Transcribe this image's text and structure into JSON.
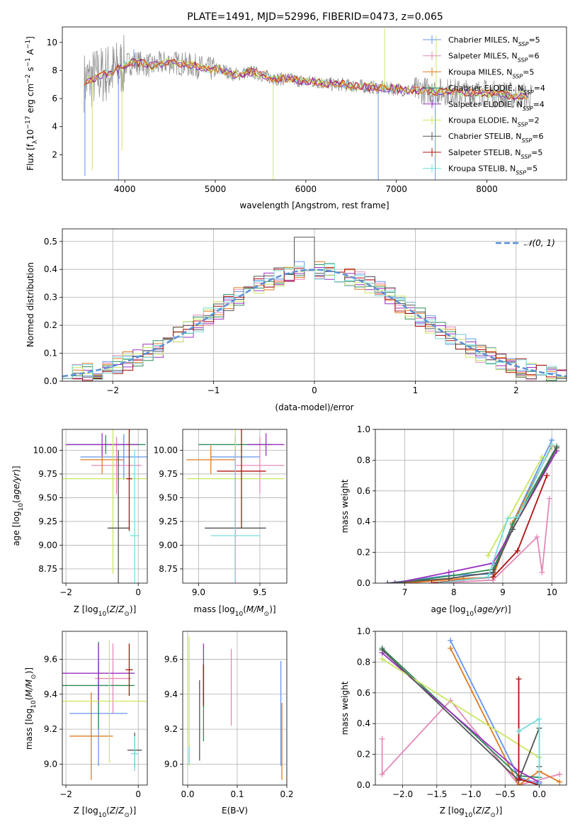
{
  "colors": {
    "Chabrier MILES": "#6495ed",
    "Salpeter MILES": "#e488b8",
    "Kroupa MILES": "#e07a20",
    "Chabrier ELODIE": "#2e8b57",
    "Salpeter ELODIE": "#9a30c0",
    "Kroupa ELODIE": "#c8e860",
    "Chabrier STELIB": "#555555",
    "Salpeter STELIB": "#b01010",
    "Kroupa STELIB": "#78dcdc",
    "spectrum": "#888888",
    "normal": "#5b8fd6"
  },
  "chart_data": [
    {
      "id": "spectrum",
      "type": "line",
      "title": "PLATE=1491, MJD=52996, FIBERID=0473, z=0.065",
      "xlabel": "wavelength [Angstrom, rest frame]",
      "ylabel": "Flux [f",
      "xticks": [
        "4000",
        "5000",
        "6000",
        "7000",
        "8000"
      ],
      "yticks": [
        "2",
        "4",
        "6",
        "8",
        "10"
      ],
      "xlim": [
        3310,
        8880
      ],
      "ylim": [
        0.2,
        11.1
      ],
      "legend_position": "top-right",
      "legend": [
        {
          "model": "Chabrier MILES",
          "n": "5"
        },
        {
          "model": "Salpeter MILES",
          "n": "6"
        },
        {
          "model": "Kroupa MILES",
          "n": "5"
        },
        {
          "model": "Chabrier ELODIE",
          "n": "4"
        },
        {
          "model": "Salpeter ELODIE",
          "n": "4"
        },
        {
          "model": "Kroupa ELODIE",
          "n": "2"
        },
        {
          "model": "Chabrier STELIB",
          "n": "6"
        },
        {
          "model": "Salpeter STELIB",
          "n": "5"
        },
        {
          "model": "Kroupa STELIB",
          "n": "5"
        }
      ],
      "continuum": [
        [
          3550,
          7.2
        ],
        [
          3600,
          7.3
        ],
        [
          3700,
          7.6
        ],
        [
          3800,
          7.8
        ],
        [
          3900,
          8.0
        ],
        [
          4000,
          8.4
        ],
        [
          4100,
          8.6
        ],
        [
          4200,
          8.5
        ],
        [
          4300,
          8.3
        ],
        [
          4400,
          8.5
        ],
        [
          4500,
          8.6
        ],
        [
          4600,
          8.5
        ],
        [
          4700,
          8.4
        ],
        [
          4800,
          8.3
        ],
        [
          4900,
          8.1
        ],
        [
          5000,
          8.1
        ],
        [
          5100,
          8.0
        ],
        [
          5200,
          7.7
        ],
        [
          5300,
          7.8
        ],
        [
          5400,
          7.9
        ],
        [
          5500,
          7.7
        ],
        [
          5600,
          7.5
        ],
        [
          5700,
          7.4
        ],
        [
          5800,
          7.4
        ],
        [
          5900,
          7.3
        ],
        [
          6000,
          7.2
        ],
        [
          6100,
          7.2
        ],
        [
          6200,
          7.1
        ],
        [
          6300,
          7.0
        ],
        [
          6400,
          7.0
        ],
        [
          6500,
          6.9
        ],
        [
          6600,
          6.9
        ],
        [
          6700,
          6.8
        ],
        [
          6800,
          6.8
        ],
        [
          6900,
          6.7
        ],
        [
          7000,
          6.7
        ],
        [
          7100,
          6.6
        ],
        [
          7200,
          6.6
        ],
        [
          7300,
          6.6
        ],
        [
          7400,
          6.5
        ],
        [
          7500,
          6.5
        ],
        [
          7600,
          6.5
        ],
        [
          7700,
          6.4
        ],
        [
          7800,
          6.4
        ],
        [
          7900,
          6.4
        ],
        [
          8000,
          6.4
        ],
        [
          8100,
          6.3
        ],
        [
          8200,
          6.3
        ],
        [
          8300,
          6.2
        ],
        [
          8400,
          6.2
        ],
        [
          8500,
          6.1
        ]
      ]
    },
    {
      "id": "residuals",
      "type": "histogram",
      "xlabel": "(data-model)/error",
      "ylabel": "Normed distribution",
      "xticks": [
        "−2",
        "−1",
        "0",
        "1",
        "2"
      ],
      "yticks": [
        "0.0",
        "0.1",
        "0.2",
        "0.3",
        "0.4",
        "0.5"
      ],
      "xlim": [
        -2.5,
        2.5
      ],
      "ylim": [
        0,
        0.545
      ],
      "legend": [
        "𝒩(0, 1)"
      ],
      "legend_position": "top-right",
      "grid": true,
      "bin_width": 0.1
    },
    {
      "id": "age-vs-z",
      "type": "scatter",
      "xlabel": "Z [log",
      "ylabel": "age  [log",
      "xticks": [
        "−2",
        "0"
      ],
      "yticks": [
        "8.75",
        "9.00",
        "9.25",
        "9.50",
        "9.75",
        "10.00"
      ],
      "xlim": [
        -2.1,
        0.25
      ],
      "ylim": [
        8.6,
        10.22
      ],
      "points": [
        {
          "model": "Chabrier MILES",
          "x": -0.4,
          "xerr": 1.2,
          "y": 9.93,
          "yerr": 0.24
        },
        {
          "model": "Salpeter MILES",
          "x": -0.6,
          "xerr": 0.7,
          "y": 9.84,
          "yerr": 0.3
        },
        {
          "model": "Kroupa MILES",
          "x": -1.0,
          "xerr": 0.6,
          "y": 9.9,
          "yerr": 0.15
        },
        {
          "model": "Chabrier ELODIE",
          "x": -0.9,
          "xerr": 1.1,
          "y": 10.06,
          "yerr": 0.1
        },
        {
          "model": "Salpeter ELODIE",
          "x": -1.0,
          "xerr": 1.0,
          "y": 10.06,
          "yerr": 0.12
        },
        {
          "model": "Kroupa ELODIE",
          "x": -0.7,
          "xerr": 1.6,
          "y": 9.7,
          "yerr": 1.0
        },
        {
          "model": "Chabrier STELIB",
          "x": -0.55,
          "xerr": 0.3,
          "y": 9.18,
          "yerr": 0.82
        },
        {
          "model": "Salpeter STELIB",
          "x": -0.25,
          "xerr": 0.08,
          "y": 9.7,
          "yerr": 0.55
        },
        {
          "model": "Kroupa STELIB",
          "x": -0.1,
          "xerr": 0.12,
          "y": 9.1,
          "yerr": 0.9
        }
      ]
    },
    {
      "id": "age-vs-mass",
      "type": "scatter",
      "xlabel": "mass [log",
      "ylabel": "",
      "xticks": [
        "9.0",
        "9.5"
      ],
      "yticks": [
        "8.75",
        "9.00",
        "9.25",
        "9.50",
        "9.75",
        "10.00"
      ],
      "xlim": [
        8.87,
        9.72
      ],
      "ylim": [
        8.6,
        10.22
      ],
      "points": [
        {
          "model": "Chabrier MILES",
          "x": 9.3,
          "xerr": 0.2,
          "y": 9.93,
          "yerr": 0.24
        },
        {
          "model": "Salpeter MILES",
          "x": 9.5,
          "xerr": 0.2,
          "y": 9.84,
          "yerr": 0.3
        },
        {
          "model": "Kroupa MILES",
          "x": 9.1,
          "xerr": 0.2,
          "y": 9.9,
          "yerr": 0.15
        },
        {
          "model": "Chabrier ELODIE",
          "x": 9.3,
          "xerr": 0.3,
          "y": 10.06,
          "yerr": 0.1
        },
        {
          "model": "Salpeter ELODIE",
          "x": 9.55,
          "xerr": 0.15,
          "y": 10.06,
          "yerr": 0.12
        },
        {
          "model": "Kroupa ELODIE",
          "x": 9.3,
          "xerr": 0.4,
          "y": 9.7,
          "yerr": 1.0
        },
        {
          "model": "Chabrier STELIB",
          "x": 9.3,
          "xerr": 0.25,
          "y": 9.18,
          "yerr": 0.82
        },
        {
          "model": "Salpeter STELIB",
          "x": 9.35,
          "xerr": 0.2,
          "y": 9.78,
          "yerr": 0.6
        },
        {
          "model": "Kroupa STELIB",
          "x": 9.3,
          "xerr": 0.2,
          "y": 9.1,
          "yerr": 0.9
        }
      ]
    },
    {
      "id": "mass-weight-vs-age",
      "type": "line",
      "xlabel": "age  [log",
      "ylabel": "mass weight",
      "xticks": [
        "7",
        "8",
        "9",
        "10"
      ],
      "yticks": [
        "0.0",
        "0.2",
        "0.4",
        "0.6",
        "0.8",
        "1.0"
      ],
      "xlim": [
        6.4,
        10.3
      ],
      "ylim": [
        0,
        1.0
      ],
      "grid": true,
      "series": [
        {
          "model": "Chabrier MILES",
          "x": [
            6.65,
            7.9,
            8.8,
            9.2,
            10.0
          ],
          "y": [
            0.0,
            0.05,
            0.06,
            0.39,
            0.93
          ]
        },
        {
          "model": "Salpeter MILES",
          "x": [
            7.6,
            8.8,
            9.7,
            9.8,
            9.95
          ],
          "y": [
            0.0,
            0.02,
            0.3,
            0.07,
            0.55
          ]
        },
        {
          "model": "Kroupa MILES",
          "x": [
            7.0,
            8.2,
            8.8,
            9.2,
            10.0
          ],
          "y": [
            0.0,
            0.03,
            0.04,
            0.39,
            0.89
          ]
        },
        {
          "model": "Chabrier ELODIE",
          "x": [
            6.8,
            8.0,
            8.8,
            9.2,
            10.1
          ],
          "y": [
            0.0,
            0.05,
            0.09,
            0.38,
            0.89
          ]
        },
        {
          "model": "Salpeter ELODIE",
          "x": [
            6.8,
            7.9,
            8.8,
            9.2,
            10.1
          ],
          "y": [
            0.0,
            0.07,
            0.13,
            0.35,
            0.86
          ]
        },
        {
          "model": "Kroupa ELODIE",
          "x": [
            8.7,
            9.8
          ],
          "y": [
            0.18,
            0.82
          ]
        },
        {
          "model": "Chabrier STELIB",
          "x": [
            6.65,
            7.9,
            8.8,
            9.2,
            10.1
          ],
          "y": [
            0.0,
            0.03,
            0.07,
            0.35,
            0.88
          ]
        },
        {
          "model": "Salpeter STELIB",
          "x": [
            7.55,
            8.8,
            9.3,
            9.9
          ],
          "y": [
            0.0,
            0.04,
            0.21,
            0.7
          ]
        },
        {
          "model": "Kroupa STELIB",
          "x": [
            7.7,
            8.7,
            9.1,
            9.3,
            10.0
          ],
          "y": [
            0.0,
            0.04,
            0.42,
            0.43,
            0.9
          ]
        }
      ]
    },
    {
      "id": "mass-vs-z",
      "type": "scatter",
      "xlabel": "Z [log",
      "ylabel": "mass [log",
      "xticks": [
        "−2",
        "0"
      ],
      "yticks": [
        "9.0",
        "9.2",
        "9.4",
        "9.6"
      ],
      "xlim": [
        -2.1,
        0.25
      ],
      "ylim": [
        8.88,
        9.76
      ],
      "points": [
        {
          "model": "Chabrier MILES",
          "x": -1.1,
          "xerr": 0.8,
          "y": 9.29,
          "yerr": 0.3
        },
        {
          "model": "Salpeter MILES",
          "x": -0.7,
          "xerr": 0.5,
          "y": 9.49,
          "yerr": 0.2
        },
        {
          "model": "Kroupa MILES",
          "x": -1.3,
          "xerr": 0.6,
          "y": 9.16,
          "yerr": 0.25
        },
        {
          "model": "Chabrier ELODIE",
          "x": -1.1,
          "xerr": 1.0,
          "y": 9.45,
          "yerr": 0.25
        },
        {
          "model": "Salpeter ELODIE",
          "x": -1.1,
          "xerr": 1.0,
          "y": 9.52,
          "yerr": 0.17
        },
        {
          "model": "Kroupa ELODIE",
          "x": -0.8,
          "xerr": 1.4,
          "y": 9.36,
          "yerr": 0.35
        },
        {
          "model": "Chabrier STELIB",
          "x": -0.1,
          "xerr": 0.2,
          "y": 9.08,
          "yerr": 0.1
        },
        {
          "model": "Salpeter STELIB",
          "x": -0.25,
          "xerr": 0.1,
          "y": 9.54,
          "yerr": 0.15
        },
        {
          "model": "Kroupa STELIB",
          "x": -0.1,
          "xerr": 0.1,
          "y": 9.06,
          "yerr": 0.1
        }
      ]
    },
    {
      "id": "mass-vs-ebv",
      "type": "scatter",
      "xlabel": "E(B-V)",
      "ylabel": "",
      "xticks": [
        "0.0",
        "0.1",
        "0.2"
      ],
      "yticks": [
        "9.0",
        "9.2",
        "9.4",
        "9.6"
      ],
      "xlim": [
        -0.01,
        0.2
      ],
      "ylim": [
        8.88,
        9.76
      ],
      "points": [
        {
          "model": "Chabrier MILES",
          "x": 0.188,
          "y": 9.29,
          "yerr": 0.3
        },
        {
          "model": "Salpeter MILES",
          "x": 0.088,
          "y": 9.44,
          "yerr": 0.22
        },
        {
          "model": "Kroupa MILES",
          "x": 0.19,
          "y": 9.13,
          "yerr": 0.22
        },
        {
          "model": "Chabrier ELODIE",
          "x": 0.032,
          "y": 9.35,
          "yerr": 0.22
        },
        {
          "model": "Salpeter ELODIE",
          "x": 0.032,
          "y": 9.52,
          "yerr": 0.17
        },
        {
          "model": "Kroupa ELODIE",
          "x": 0.003,
          "y": 9.36,
          "yerr": 0.37
        },
        {
          "model": "Chabrier STELIB",
          "x": 0.024,
          "y": 9.25,
          "yerr": 0.23
        },
        {
          "model": "Salpeter STELIB",
          "x": 0.032,
          "y": 9.45,
          "yerr": 0.12
        },
        {
          "model": "Kroupa STELIB",
          "x": 0.003,
          "y": 9.05,
          "yerr": 0.05
        }
      ]
    },
    {
      "id": "mass-weight-vs-z",
      "type": "line",
      "xlabel": "Z [log",
      "ylabel": "mass weight",
      "xticks": [
        "−2.0",
        "−1.5",
        "−1.0",
        "−0.5",
        "0.0"
      ],
      "yticks": [
        "0.0",
        "0.2",
        "0.4",
        "0.6",
        "0.8",
        "1.0"
      ],
      "xlim": [
        -2.4,
        0.4
      ],
      "ylim": [
        0,
        1.0
      ],
      "grid": true,
      "series": [
        {
          "model": "Chabrier MILES",
          "x": [
            -1.3,
            -0.3,
            0.0
          ],
          "y": [
            0.94,
            0.05,
            0.01
          ]
        },
        {
          "model": "Salpeter MILES",
          "x": [
            -2.3,
            -2.3,
            -1.3,
            -0.3,
            0.3
          ],
          "y": [
            0.3,
            0.07,
            0.55,
            0.0,
            0.07
          ]
        },
        {
          "model": "Kroupa MILES",
          "x": [
            -1.3,
            -0.3,
            0.0,
            0.3
          ],
          "y": [
            0.89,
            0.0,
            0.09,
            0.02
          ]
        },
        {
          "model": "Chabrier ELODIE",
          "x": [
            -2.3,
            -0.3,
            0.0
          ],
          "y": [
            0.89,
            0.06,
            0.05
          ]
        },
        {
          "model": "Salpeter ELODIE",
          "x": [
            -2.3,
            -0.3,
            0.0
          ],
          "y": [
            0.86,
            0.09,
            0.02
          ]
        },
        {
          "model": "Kroupa ELODIE",
          "x": [
            -2.3,
            0.0
          ],
          "y": [
            0.82,
            0.18
          ]
        },
        {
          "model": "Chabrier STELIB",
          "x": [
            -2.3,
            -0.3,
            0.0,
            0.0
          ],
          "y": [
            0.88,
            0.03,
            0.37,
            0.12
          ]
        },
        {
          "model": "Salpeter STELIB",
          "x": [
            -0.3,
            -0.3,
            0.0
          ],
          "y": [
            0.69,
            0.04,
            0.0
          ]
        },
        {
          "model": "Kroupa STELIB",
          "x": [
            -0.3,
            0.0,
            0.0
          ],
          "y": [
            0.35,
            0.43,
            0.0
          ]
        }
      ]
    }
  ]
}
